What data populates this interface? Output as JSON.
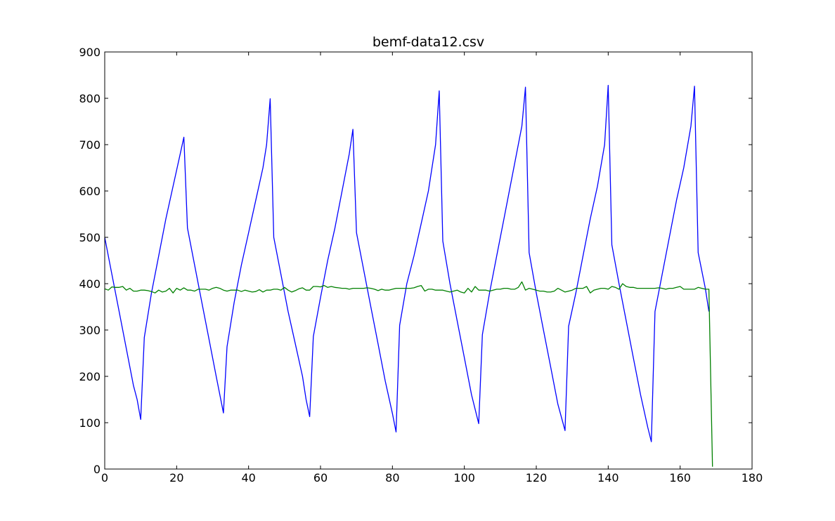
{
  "chart_data": {
    "type": "line",
    "title": "bemf-data12.csv",
    "xlabel": "",
    "ylabel": "",
    "xlim": [
      0,
      180
    ],
    "ylim": [
      0,
      900
    ],
    "xticks": [
      0,
      20,
      40,
      60,
      80,
      100,
      120,
      140,
      160,
      180
    ],
    "yticks": [
      0,
      100,
      200,
      300,
      400,
      500,
      600,
      700,
      800,
      900
    ],
    "grid": false,
    "legend": "none",
    "series": [
      {
        "color": "#0000ff",
        "points": [
          [
            0,
            500
          ],
          [
            2,
            420
          ],
          [
            4,
            340
          ],
          [
            6,
            260
          ],
          [
            8,
            180
          ],
          [
            9,
            150
          ],
          [
            10,
            107
          ],
          [
            11,
            284
          ],
          [
            13,
            380
          ],
          [
            15,
            460
          ],
          [
            17,
            540
          ],
          [
            19,
            610
          ],
          [
            21,
            680
          ],
          [
            22,
            716
          ],
          [
            23,
            520
          ],
          [
            25,
            440
          ],
          [
            27,
            360
          ],
          [
            29,
            280
          ],
          [
            31,
            200
          ],
          [
            33,
            121
          ],
          [
            34,
            264
          ],
          [
            36,
            360
          ],
          [
            38,
            440
          ],
          [
            40,
            510
          ],
          [
            42,
            580
          ],
          [
            44,
            650
          ],
          [
            45,
            700
          ],
          [
            46,
            799
          ],
          [
            47,
            500
          ],
          [
            49,
            420
          ],
          [
            51,
            340
          ],
          [
            53,
            270
          ],
          [
            55,
            200
          ],
          [
            56,
            150
          ],
          [
            57,
            113
          ],
          [
            58,
            286
          ],
          [
            60,
            370
          ],
          [
            62,
            450
          ],
          [
            64,
            520
          ],
          [
            66,
            600
          ],
          [
            68,
            680
          ],
          [
            69,
            733
          ],
          [
            70,
            510
          ],
          [
            72,
            430
          ],
          [
            74,
            350
          ],
          [
            76,
            270
          ],
          [
            78,
            190
          ],
          [
            80,
            120
          ],
          [
            81,
            80
          ],
          [
            82,
            310
          ],
          [
            84,
            400
          ],
          [
            86,
            460
          ],
          [
            88,
            530
          ],
          [
            90,
            600
          ],
          [
            92,
            700
          ],
          [
            93,
            816
          ],
          [
            94,
            492
          ],
          [
            96,
            400
          ],
          [
            98,
            320
          ],
          [
            100,
            240
          ],
          [
            102,
            160
          ],
          [
            104,
            98
          ],
          [
            105,
            290
          ],
          [
            107,
            380
          ],
          [
            109,
            460
          ],
          [
            111,
            540
          ],
          [
            113,
            620
          ],
          [
            115,
            700
          ],
          [
            116,
            740
          ],
          [
            117,
            824
          ],
          [
            118,
            467
          ],
          [
            120,
            380
          ],
          [
            122,
            300
          ],
          [
            124,
            220
          ],
          [
            126,
            140
          ],
          [
            128,
            83
          ],
          [
            129,
            308
          ],
          [
            131,
            380
          ],
          [
            133,
            460
          ],
          [
            135,
            540
          ],
          [
            137,
            610
          ],
          [
            139,
            700
          ],
          [
            140,
            828
          ],
          [
            141,
            484
          ],
          [
            143,
            400
          ],
          [
            145,
            320
          ],
          [
            147,
            240
          ],
          [
            149,
            160
          ],
          [
            151,
            90
          ],
          [
            152,
            59
          ],
          [
            153,
            340
          ],
          [
            155,
            420
          ],
          [
            157,
            500
          ],
          [
            159,
            580
          ],
          [
            161,
            650
          ],
          [
            163,
            740
          ],
          [
            164,
            826
          ],
          [
            165,
            467
          ],
          [
            167,
            390
          ],
          [
            168,
            340
          ]
        ]
      },
      {
        "color": "#008000",
        "points": [
          [
            0,
            389
          ],
          [
            1,
            386
          ],
          [
            2,
            393
          ],
          [
            3,
            392
          ],
          [
            4,
            392
          ],
          [
            5,
            394
          ],
          [
            6,
            386
          ],
          [
            7,
            390
          ],
          [
            8,
            384
          ],
          [
            9,
            384
          ],
          [
            10,
            386
          ],
          [
            11,
            386
          ],
          [
            12,
            385
          ],
          [
            13,
            383
          ],
          [
            14,
            380
          ],
          [
            15,
            386
          ],
          [
            16,
            382
          ],
          [
            17,
            384
          ],
          [
            18,
            390
          ],
          [
            19,
            380
          ],
          [
            20,
            390
          ],
          [
            21,
            386
          ],
          [
            22,
            391
          ],
          [
            23,
            386
          ],
          [
            24,
            386
          ],
          [
            25,
            384
          ],
          [
            26,
            388
          ],
          [
            27,
            388
          ],
          [
            28,
            388
          ],
          [
            29,
            386
          ],
          [
            30,
            390
          ],
          [
            31,
            392
          ],
          [
            32,
            390
          ],
          [
            33,
            386
          ],
          [
            34,
            384
          ],
          [
            35,
            386
          ],
          [
            36,
            386
          ],
          [
            37,
            386
          ],
          [
            38,
            383
          ],
          [
            39,
            386
          ],
          [
            40,
            384
          ],
          [
            41,
            382
          ],
          [
            42,
            383
          ],
          [
            43,
            387
          ],
          [
            44,
            382
          ],
          [
            45,
            386
          ],
          [
            46,
            386
          ],
          [
            47,
            388
          ],
          [
            48,
            388
          ],
          [
            49,
            386
          ],
          [
            50,
            392
          ],
          [
            51,
            386
          ],
          [
            52,
            382
          ],
          [
            53,
            385
          ],
          [
            54,
            389
          ],
          [
            55,
            391
          ],
          [
            56,
            386
          ],
          [
            57,
            386
          ],
          [
            58,
            394
          ],
          [
            59,
            394
          ],
          [
            60,
            393
          ],
          [
            61,
            396
          ],
          [
            62,
            392
          ],
          [
            63,
            394
          ],
          [
            64,
            392
          ],
          [
            65,
            391
          ],
          [
            66,
            390
          ],
          [
            67,
            390
          ],
          [
            68,
            388
          ],
          [
            69,
            390
          ],
          [
            70,
            390
          ],
          [
            71,
            390
          ],
          [
            72,
            390
          ],
          [
            73,
            391
          ],
          [
            74,
            390
          ],
          [
            75,
            388
          ],
          [
            76,
            385
          ],
          [
            77,
            388
          ],
          [
            78,
            386
          ],
          [
            79,
            386
          ],
          [
            80,
            388
          ],
          [
            81,
            390
          ],
          [
            82,
            390
          ],
          [
            83,
            390
          ],
          [
            84,
            390
          ],
          [
            85,
            390
          ],
          [
            86,
            391
          ],
          [
            87,
            394
          ],
          [
            88,
            396
          ],
          [
            89,
            384
          ],
          [
            90,
            388
          ],
          [
            91,
            388
          ],
          [
            92,
            386
          ],
          [
            93,
            386
          ],
          [
            94,
            386
          ],
          [
            95,
            384
          ],
          [
            96,
            382
          ],
          [
            97,
            384
          ],
          [
            98,
            386
          ],
          [
            99,
            382
          ],
          [
            100,
            380
          ],
          [
            101,
            390
          ],
          [
            102,
            382
          ],
          [
            103,
            394
          ],
          [
            104,
            386
          ],
          [
            105,
            386
          ],
          [
            106,
            386
          ],
          [
            107,
            384
          ],
          [
            108,
            386
          ],
          [
            109,
            388
          ],
          [
            110,
            388
          ],
          [
            111,
            390
          ],
          [
            112,
            390
          ],
          [
            113,
            388
          ],
          [
            114,
            388
          ],
          [
            115,
            392
          ],
          [
            116,
            404
          ],
          [
            117,
            386
          ],
          [
            118,
            390
          ],
          [
            119,
            388
          ],
          [
            120,
            386
          ],
          [
            121,
            384
          ],
          [
            122,
            384
          ],
          [
            123,
            382
          ],
          [
            124,
            382
          ],
          [
            125,
            384
          ],
          [
            126,
            390
          ],
          [
            127,
            386
          ],
          [
            128,
            382
          ],
          [
            129,
            384
          ],
          [
            130,
            386
          ],
          [
            131,
            390
          ],
          [
            132,
            390
          ],
          [
            133,
            390
          ],
          [
            134,
            394
          ],
          [
            135,
            380
          ],
          [
            136,
            386
          ],
          [
            137,
            388
          ],
          [
            138,
            390
          ],
          [
            139,
            390
          ],
          [
            140,
            388
          ],
          [
            141,
            394
          ],
          [
            142,
            392
          ],
          [
            143,
            388
          ],
          [
            144,
            400
          ],
          [
            145,
            394
          ],
          [
            146,
            392
          ],
          [
            147,
            392
          ],
          [
            148,
            390
          ],
          [
            149,
            390
          ],
          [
            150,
            390
          ],
          [
            151,
            390
          ],
          [
            152,
            390
          ],
          [
            153,
            390
          ],
          [
            154,
            391
          ],
          [
            155,
            390
          ],
          [
            156,
            388
          ],
          [
            157,
            390
          ],
          [
            158,
            390
          ],
          [
            159,
            392
          ],
          [
            160,
            394
          ],
          [
            161,
            388
          ],
          [
            162,
            388
          ],
          [
            163,
            388
          ],
          [
            164,
            388
          ],
          [
            165,
            392
          ],
          [
            166,
            390
          ],
          [
            167,
            388
          ],
          [
            168,
            388
          ],
          [
            169,
            5
          ]
        ]
      }
    ]
  }
}
